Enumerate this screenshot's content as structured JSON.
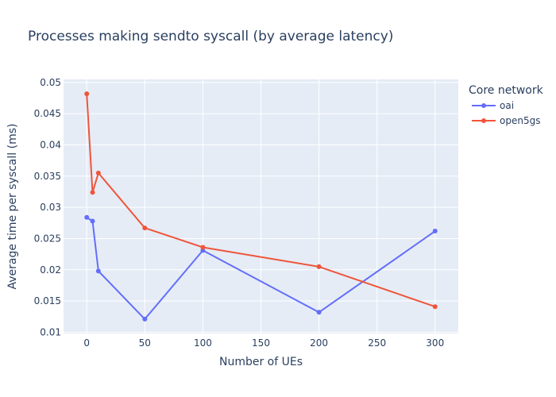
{
  "chart_data": {
    "type": "line",
    "title": "Processes making sendto syscall (by average latency)",
    "xlabel": "Number of UEs",
    "ylabel": "Average time per syscall (ms)",
    "xlim": [
      -20,
      320
    ],
    "ylim": [
      0.0098,
      0.0505
    ],
    "xticks": [
      0,
      50,
      100,
      150,
      200,
      250,
      300
    ],
    "yticks": [
      0.01,
      0.015,
      0.02,
      0.025,
      0.03,
      0.035,
      0.04,
      0.045,
      0.05
    ],
    "ytick_labels": [
      "0.01",
      "0.015",
      "0.02",
      "0.025",
      "0.03",
      "0.035",
      "0.04",
      "0.045",
      "0.05"
    ],
    "grid": true,
    "legend_title": "Core network",
    "legend_placement": "top-right-outside",
    "series": [
      {
        "name": "oai",
        "color": "#636efa",
        "x": [
          0,
          5,
          10,
          50,
          100,
          200,
          300
        ],
        "y": [
          0.0284,
          0.0278,
          0.0198,
          0.0121,
          0.0231,
          0.0132,
          0.0262
        ]
      },
      {
        "name": "open5gs",
        "color": "#ef553b",
        "x": [
          0,
          5,
          10,
          50,
          100,
          200,
          300
        ],
        "y": [
          0.0482,
          0.0324,
          0.0355,
          0.0267,
          0.0236,
          0.0205,
          0.0141
        ]
      }
    ],
    "colors": {
      "plot_bg": "#e5ecf6",
      "grid": "#ffffff",
      "text": "#2a3f5f"
    }
  }
}
